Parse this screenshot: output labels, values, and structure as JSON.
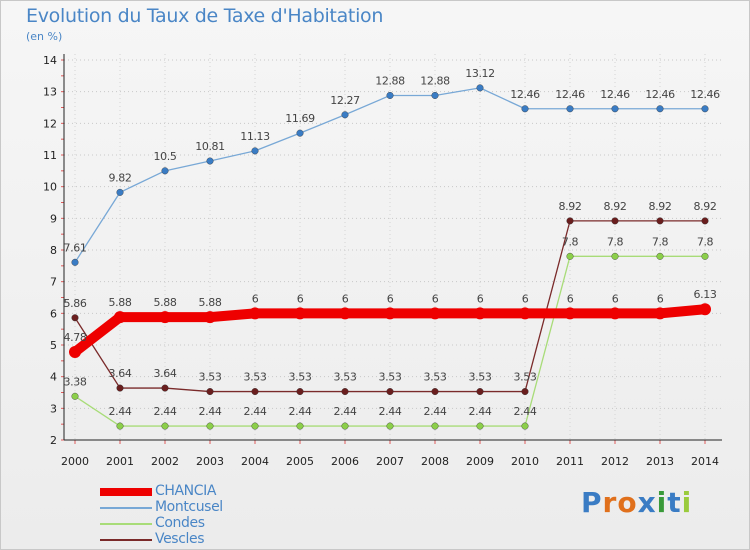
{
  "header": {
    "title": "Evolution du Taux de Taxe d'Habitation",
    "subtitle": "(en %)"
  },
  "logo": {
    "text": "Proxiti",
    "letters": [
      "P",
      "r",
      "o",
      "x",
      "i",
      "t",
      "i"
    ]
  },
  "colors": {
    "title": "#4a86c6",
    "axis": "#222222",
    "grid": "#cccccc"
  },
  "chart_data": {
    "type": "line",
    "title": "Evolution du Taux de Taxe d'Habitation",
    "subtitle": "(en %)",
    "xlabel": "",
    "ylabel": "",
    "x": [
      "2000",
      "2001",
      "2002",
      "2003",
      "2004",
      "2005",
      "2006",
      "2007",
      "2008",
      "2009",
      "2010",
      "2011",
      "2012",
      "2013",
      "2014"
    ],
    "yticks": [
      "2",
      "3",
      "4",
      "5",
      "6",
      "7",
      "8",
      "9",
      "10",
      "11",
      "12",
      "13",
      "14"
    ],
    "ylim": [
      2,
      14
    ],
    "grid": "horizontal dotted",
    "legend_position": "bottom-left",
    "series": [
      {
        "name": "CHANCIA",
        "color": "#ee0000",
        "marker": "#ee0000",
        "values": [
          4.78,
          5.88,
          5.88,
          5.88,
          6,
          6,
          6,
          6,
          6,
          6,
          6,
          6,
          6,
          6,
          6.13
        ],
        "labels": [
          "4.78",
          "5.88",
          "5.88",
          "5.88",
          "6",
          "6",
          "6",
          "6",
          "6",
          "6",
          "6",
          "6",
          "6",
          "6",
          "6.13"
        ]
      },
      {
        "name": "Montcusel",
        "color": "#78a8d6",
        "marker": "#3a7cc4",
        "values": [
          7.61,
          9.82,
          10.5,
          10.81,
          11.13,
          11.69,
          12.27,
          12.88,
          12.88,
          13.12,
          12.46,
          12.46,
          12.46,
          12.46,
          12.46
        ],
        "labels": [
          "7.61",
          "9.82",
          "10.5",
          "10.81",
          "11.13",
          "11.69",
          "12.27",
          "12.88",
          "12.88",
          "13.12",
          "12.46",
          "12.46",
          "12.46",
          "12.46",
          "12.46"
        ]
      },
      {
        "name": "Condes",
        "color": "#a8dc78",
        "marker": "#8ccf4a",
        "values": [
          3.38,
          2.44,
          2.44,
          2.44,
          2.44,
          2.44,
          2.44,
          2.44,
          2.44,
          2.44,
          2.44,
          7.8,
          7.8,
          7.8,
          7.8
        ],
        "labels": [
          "3.38",
          "2.44",
          "2.44",
          "2.44",
          "2.44",
          "2.44",
          "2.44",
          "2.44",
          "2.44",
          "2.44",
          "2.44",
          "7.8",
          "7.8",
          "7.8",
          "7.8"
        ]
      },
      {
        "name": "Vescles",
        "color": "#7a2a2a",
        "marker": "#6a1e1e",
        "values": [
          5.86,
          3.64,
          3.64,
          3.53,
          3.53,
          3.53,
          3.53,
          3.53,
          3.53,
          3.53,
          3.53,
          8.92,
          8.92,
          8.92,
          8.92
        ],
        "labels": [
          "5.86",
          "3.64",
          "3.64",
          "3.53",
          "3.53",
          "3.53",
          "3.53",
          "3.53",
          "3.53",
          "3.53",
          "3.53",
          "8.92",
          "8.92",
          "8.92",
          "8.92"
        ]
      }
    ]
  }
}
